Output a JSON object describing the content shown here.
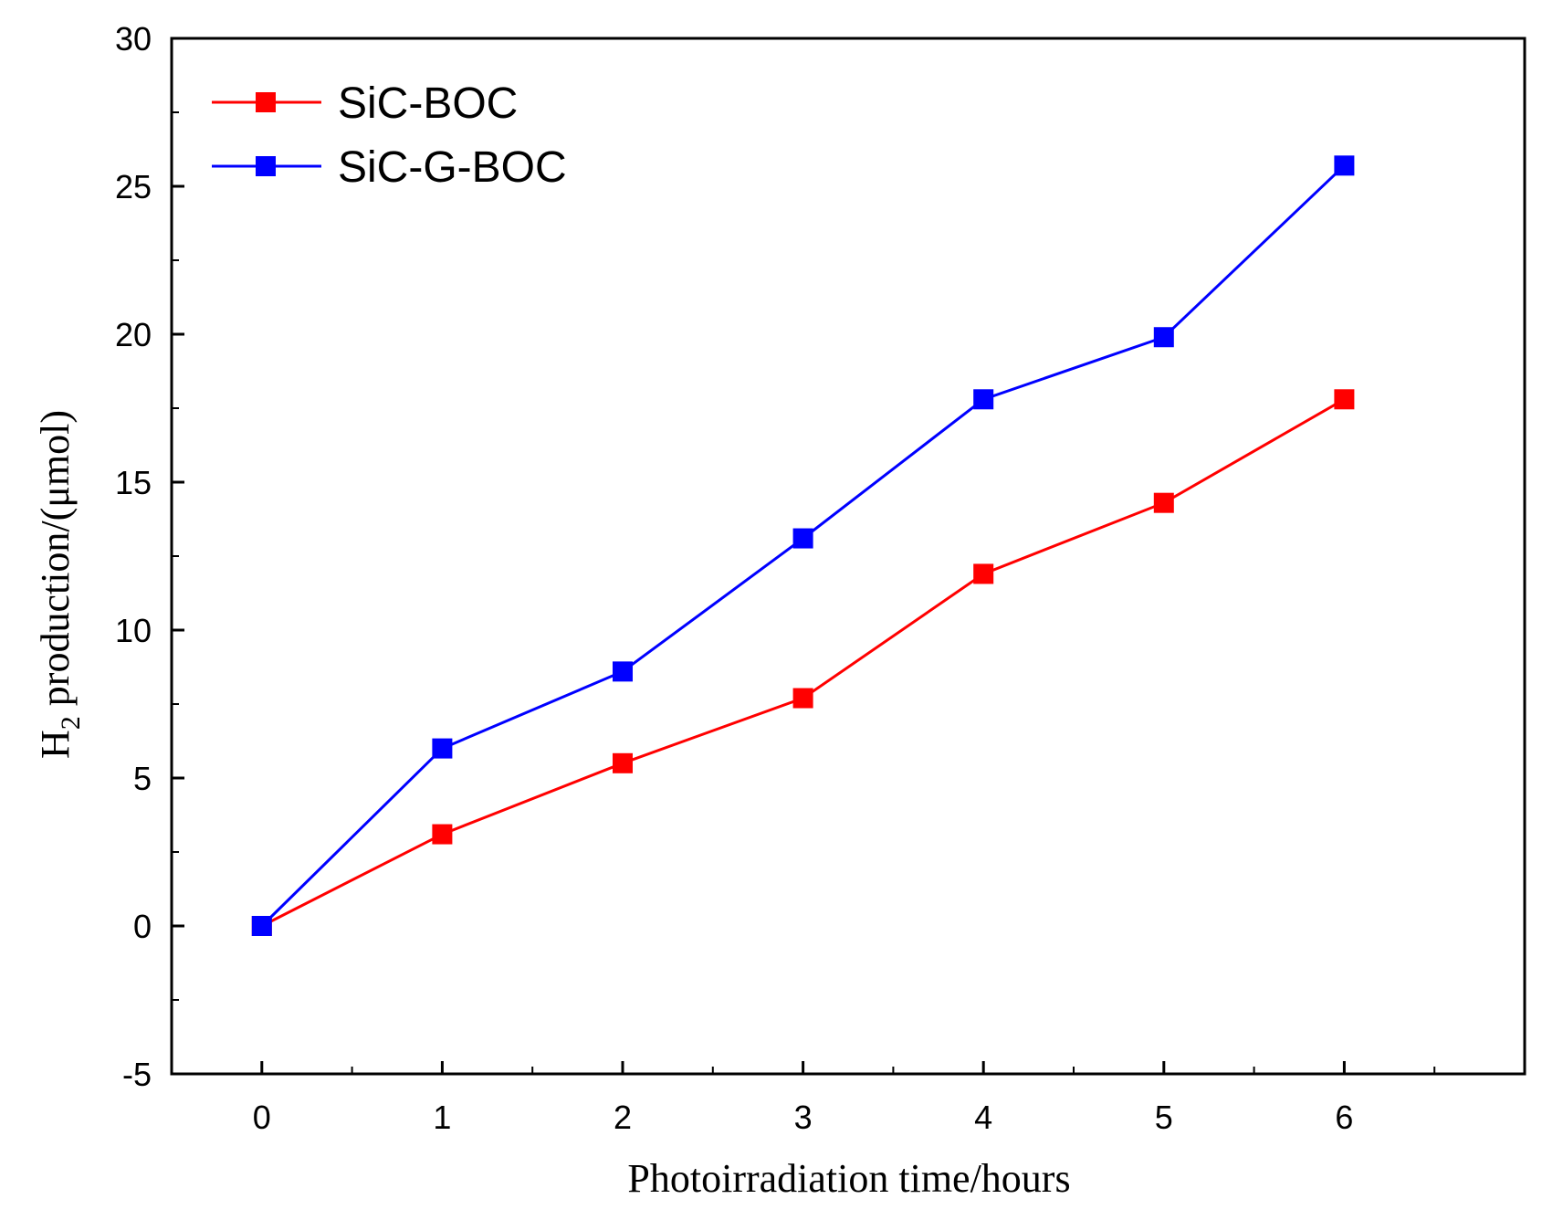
{
  "chart_data": {
    "type": "line",
    "title": "",
    "xlabel": "Photoirradiation time/hours",
    "ylabel": {
      "prefix": "H",
      "subscript": "2",
      "suffix": " production/(μmol)"
    },
    "xlim": [
      -0.5,
      7.0
    ],
    "ylim": [
      -5,
      30
    ],
    "x": [
      0,
      1,
      2,
      3,
      4,
      5,
      6
    ],
    "xticks": [
      "0",
      "1",
      "2",
      "3",
      "4",
      "5",
      "6"
    ],
    "yticks": [
      "-5",
      "0",
      "5",
      "10",
      "15",
      "20",
      "25",
      "30"
    ],
    "legend_position": "top-left",
    "series": [
      {
        "name": "SiC-BOC",
        "color": "#ff0000",
        "marker": "square",
        "values": [
          0,
          3.1,
          5.5,
          7.7,
          11.9,
          14.3,
          17.8
        ]
      },
      {
        "name": "SiC-G-BOC",
        "color": "#0000ff",
        "marker": "square",
        "values": [
          0,
          6.0,
          8.6,
          13.1,
          17.8,
          19.9,
          25.7
        ]
      }
    ],
    "grid": false
  }
}
